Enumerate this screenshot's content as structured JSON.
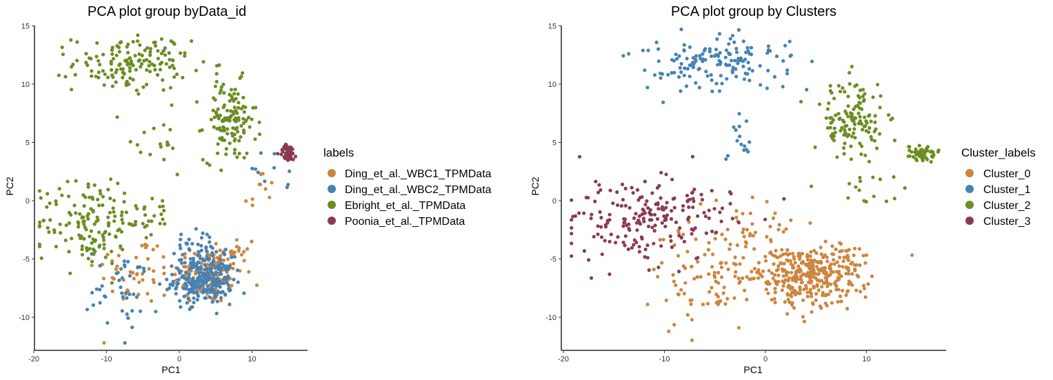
{
  "chart_data": [
    {
      "type": "scatter",
      "title": "PCA plot group byData_id",
      "xlabel": "PC1",
      "ylabel": "PC2",
      "xlim": [
        -20,
        17
      ],
      "ylim": [
        -12.8,
        15
      ],
      "xticks": [
        "-20",
        "-10",
        "0",
        "10"
      ],
      "yticks": [
        "-10",
        "-5",
        "0",
        "5",
        "10",
        "15"
      ],
      "grid": false,
      "legend": {
        "title": "labels",
        "position": "right"
      },
      "series": [
        {
          "name": "Ding_et_al._WBC1_TPMData",
          "color": "#CD853F",
          "clusters": [
            {
              "cx": 4.0,
              "cy": -6.3,
              "sx": 2.4,
              "sy": 1.3,
              "n": 140
            },
            {
              "cx": -6.0,
              "cy": -6.0,
              "sx": 2.8,
              "sy": 1.5,
              "n": 45
            },
            {
              "cx": 8.0,
              "cy": -4.5,
              "sx": 1.2,
              "sy": 0.8,
              "n": 18
            },
            {
              "cx": 11.0,
              "cy": 0.5,
              "sx": 1.2,
              "sy": 1.2,
              "n": 10
            }
          ]
        },
        {
          "name": "Ding_et_al._WBC2_TPMData",
          "color": "#4682B4",
          "clusters": [
            {
              "cx": 3.3,
              "cy": -6.8,
              "sx": 2.0,
              "sy": 1.0,
              "n": 260
            },
            {
              "cx": 2.5,
              "cy": -4.0,
              "sx": 2.2,
              "sy": 0.8,
              "n": 30
            },
            {
              "cx": -7.5,
              "cy": -7.5,
              "sx": 2.5,
              "sy": 1.8,
              "n": 45
            },
            {
              "cx": 12.0,
              "cy": 2.0,
              "sx": 1.5,
              "sy": 1.0,
              "n": 10
            }
          ]
        },
        {
          "name": "Ebright_et_al._TPMData",
          "color": "#6B8E23",
          "clusters": [
            {
              "cx": -6.5,
              "cy": 11.8,
              "sx": 4.0,
              "sy": 1.2,
              "n": 150
            },
            {
              "cx": 7.0,
              "cy": 6.8,
              "sx": 1.8,
              "sy": 1.7,
              "n": 130
            },
            {
              "cx": -12.5,
              "cy": -1.8,
              "sx": 3.5,
              "sy": 2.0,
              "n": 140
            },
            {
              "cx": -2.0,
              "cy": 4.5,
              "sx": 1.2,
              "sy": 1.2,
              "n": 15
            },
            {
              "cx": -5.5,
              "cy": -1.0,
              "sx": 2.5,
              "sy": 1.2,
              "n": 30
            }
          ]
        },
        {
          "name": "Poonia_et_al._TPMData",
          "color": "#8B3A52",
          "clusters": [
            {
              "cx": 15.0,
              "cy": 4.1,
              "sx": 0.6,
              "sy": 0.35,
              "n": 55
            }
          ]
        }
      ]
    },
    {
      "type": "scatter",
      "title": "PCA plot group by Clusters",
      "xlabel": "PC1",
      "ylabel": "PC2",
      "xlim": [
        -20,
        18
      ],
      "ylim": [
        -12.8,
        15
      ],
      "xticks": [
        "-20",
        "-10",
        "0",
        "10"
      ],
      "yticks": [
        "-10",
        "-5",
        "0",
        "5",
        "10",
        "15"
      ],
      "grid": false,
      "legend": {
        "title": "Cluster_labels",
        "position": "right"
      },
      "series": [
        {
          "name": "Cluster_0",
          "color": "#CD853F",
          "clusters": [
            {
              "cx": 4.0,
              "cy": -6.5,
              "sx": 2.6,
              "sy": 1.3,
              "n": 330
            },
            {
              "cx": -6.0,
              "cy": -6.5,
              "sx": 3.0,
              "sy": 2.0,
              "n": 90
            },
            {
              "cx": -2.0,
              "cy": -2.5,
              "sx": 2.5,
              "sy": 1.5,
              "n": 40
            },
            {
              "cx": 8.0,
              "cy": -4.5,
              "sx": 1.2,
              "sy": 0.8,
              "n": 18
            }
          ]
        },
        {
          "name": "Cluster_1",
          "color": "#4682B4",
          "clusters": [
            {
              "cx": -5.0,
              "cy": 11.8,
              "sx": 4.2,
              "sy": 1.2,
              "n": 150
            },
            {
              "cx": -2.5,
              "cy": 5.0,
              "sx": 1.0,
              "sy": 1.0,
              "n": 15
            }
          ]
        },
        {
          "name": "Cluster_2",
          "color": "#6B8E23",
          "clusters": [
            {
              "cx": 8.5,
              "cy": 7.0,
              "sx": 1.8,
              "sy": 1.8,
              "n": 130
            },
            {
              "cx": 15.5,
              "cy": 4.1,
              "sx": 0.6,
              "sy": 0.35,
              "n": 55
            },
            {
              "cx": 10.5,
              "cy": 2.5,
              "sx": 2.0,
              "sy": 1.5,
              "n": 20
            }
          ]
        },
        {
          "name": "Cluster_3",
          "color": "#8B3A52",
          "clusters": [
            {
              "cx": -12.5,
              "cy": -1.8,
              "sx": 3.5,
              "sy": 2.0,
              "n": 170
            },
            {
              "cx": -5.5,
              "cy": -1.0,
              "sx": 2.5,
              "sy": 1.2,
              "n": 30
            }
          ]
        }
      ]
    }
  ]
}
